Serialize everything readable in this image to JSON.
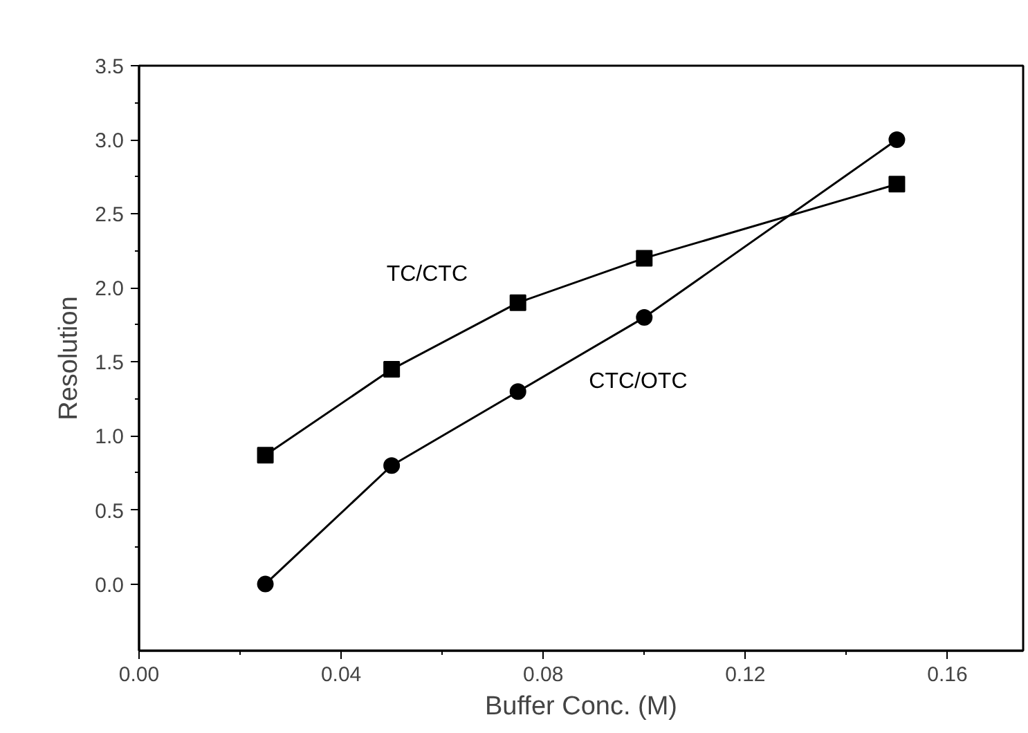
{
  "chart_data": {
    "type": "line",
    "xlabel": "Buffer Conc. (M)",
    "ylabel": "Resolution",
    "x": [
      0.025,
      0.05,
      0.075,
      0.1,
      0.15
    ],
    "series": [
      {
        "name": "TC/CTC",
        "color": "#000000",
        "marker": "square",
        "values": [
          0.87,
          1.45,
          1.9,
          2.2,
          2.7
        ]
      },
      {
        "name": "CTC/OTC",
        "color": "#000000",
        "marker": "circle",
        "values": [
          0.0,
          0.8,
          1.3,
          1.8,
          3.0
        ]
      }
    ],
    "xlim": [
      0.0,
      0.175
    ],
    "ylim": [
      -0.45,
      3.5
    ],
    "xticks": [
      {
        "value": 0,
        "label": "0.00"
      },
      0.04,
      0.08,
      0.12,
      0.16
    ],
    "yticks": [
      {
        "value": 0,
        "label": "0.0"
      },
      0.5,
      {
        "value": 1,
        "label": "1.0"
      },
      1.5,
      {
        "value": 2,
        "label": "2.0"
      },
      2.5,
      {
        "value": 3,
        "label": "3.0"
      },
      3.5
    ],
    "grid": false,
    "line_style": "solid"
  }
}
